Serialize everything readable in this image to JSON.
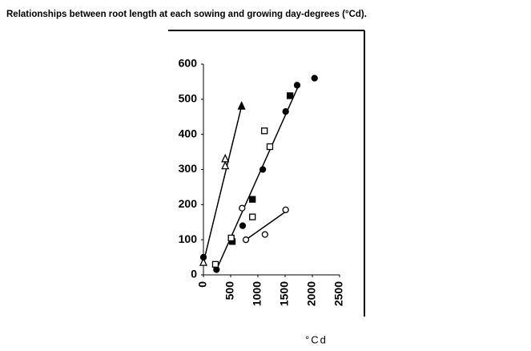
{
  "chart_data": {
    "type": "scatter",
    "title": "Relationships between root length at each sowing and growing day-degrees (°Cd).",
    "xlabel": "°Cd",
    "xlim": [
      0,
      2500
    ],
    "xticks": [
      0,
      500,
      1000,
      1500,
      2000,
      2500
    ],
    "ylim": [
      0,
      600
    ],
    "yticks": [
      0,
      100,
      200,
      300,
      400,
      500,
      600
    ],
    "series": [
      {
        "marker": "triangle",
        "filled": true,
        "color": "#000000",
        "x": [
          700
        ],
        "values": [
          480
        ]
      },
      {
        "marker": "triangle",
        "filled": false,
        "color": "#000000",
        "x": [
          400,
          400,
          0
        ],
        "values": [
          330,
          310,
          35
        ]
      },
      {
        "marker": "circle",
        "filled": true,
        "color": "#000000",
        "x": [
          0,
          240,
          720,
          1090,
          1510,
          1720,
          2040
        ],
        "values": [
          50,
          15,
          140,
          300,
          465,
          540,
          560
        ]
      },
      {
        "marker": "square",
        "filled": true,
        "color": "#000000",
        "x": [
          530,
          900,
          1590
        ],
        "values": [
          95,
          215,
          510
        ]
      },
      {
        "marker": "square",
        "filled": false,
        "color": "#000000",
        "x": [
          220,
          510,
          900,
          1120,
          1220
        ],
        "values": [
          30,
          105,
          165,
          410,
          365
        ]
      },
      {
        "marker": "circle",
        "filled": false,
        "color": "#000000",
        "x": [
          710,
          780,
          1130,
          1510
        ],
        "values": [
          190,
          100,
          115,
          185
        ]
      }
    ],
    "fits": [
      {
        "color": "#000000",
        "x": [
          0,
          700
        ],
        "values": [
          35,
          480
        ]
      },
      {
        "color": "#000000",
        "x": [
          240,
          1750
        ],
        "values": [
          15,
          540
        ]
      },
      {
        "color": "#000000",
        "x": [
          780,
          1510
        ],
        "values": [
          100,
          180
        ]
      }
    ]
  }
}
